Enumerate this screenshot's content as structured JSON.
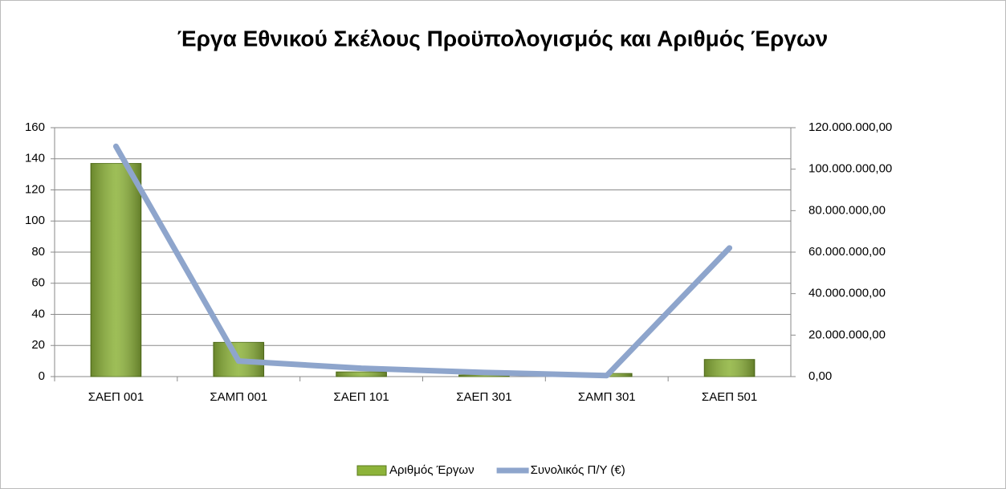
{
  "chart_data": {
    "type": "bar",
    "title": "Έργα Εθνικού Σκέλους Προϋπολογισμός και Αριθμός Έργων",
    "categories": [
      "ΣΑΕΠ 001",
      "ΣΑΜΠ 001",
      "ΣΑΕΠ 101",
      "ΣΑΕΠ 301",
      "ΣΑΜΠ 301",
      "ΣΑΕΠ 501"
    ],
    "series": [
      {
        "name": "Αριθμός Έργων",
        "type": "bar",
        "color": "#8db33a",
        "values": [
          137,
          22,
          3,
          1,
          2,
          11
        ]
      },
      {
        "name": "Συνολικός Π/Υ (€)",
        "type": "line",
        "axis": "y2",
        "color": "#8ea5cc",
        "values": [
          111000000,
          7500000,
          4000000,
          2000000,
          500000,
          62000000
        ]
      }
    ],
    "ylim": [
      0,
      160
    ],
    "yticks": [
      0,
      20,
      40,
      60,
      80,
      100,
      120,
      140,
      160
    ],
    "y2lim": [
      0,
      120000000
    ],
    "y2ticks": [
      {
        "value": 0,
        "label": "0,00"
      },
      {
        "value": 20000000,
        "label": "20.000.000,00"
      },
      {
        "value": 40000000,
        "label": "40.000.000,00"
      },
      {
        "value": 60000000,
        "label": "60.000.000,00"
      },
      {
        "value": 80000000,
        "label": "80.000.000,00"
      },
      {
        "value": 100000000,
        "label": "100.000.000,00"
      },
      {
        "value": 120000000,
        "label": "120.000.000,00"
      }
    ],
    "grid": true,
    "legend": "bottom"
  }
}
